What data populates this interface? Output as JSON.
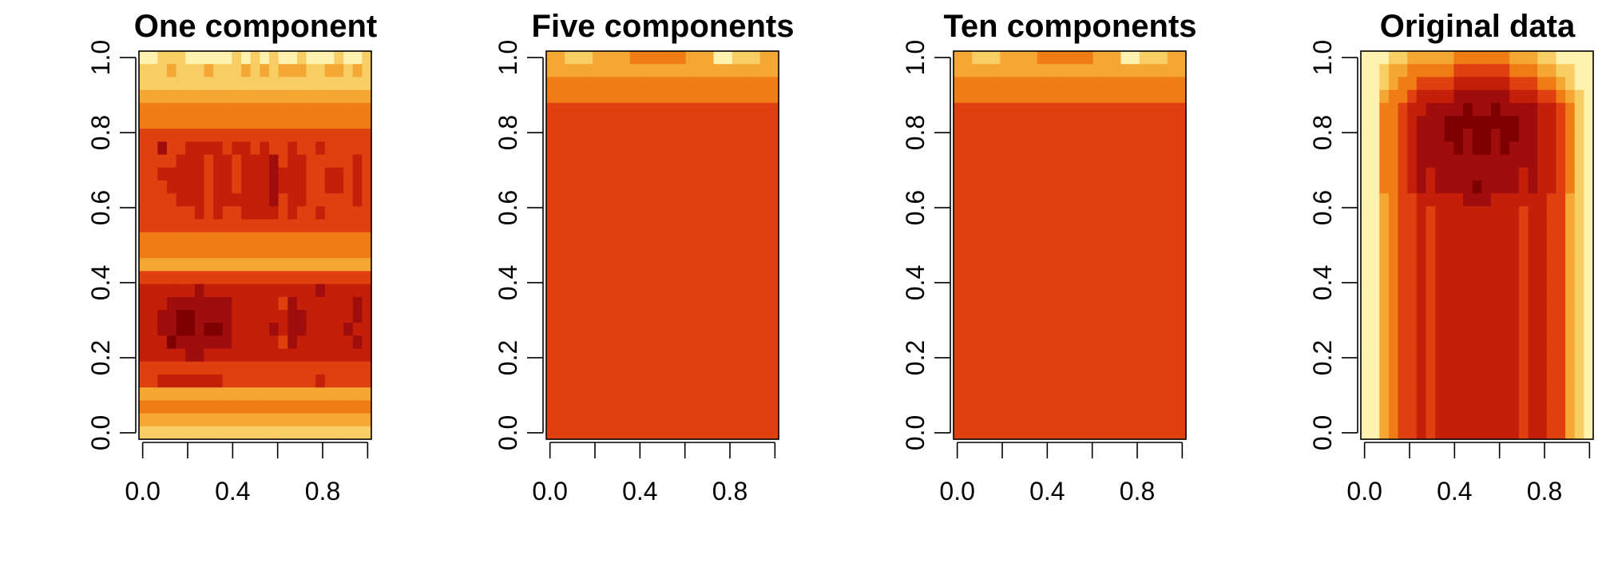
{
  "chart_data": {
    "type": "heatmap",
    "colormap": [
      "#7f0000",
      "#a00d0d",
      "#c51f0a",
      "#e0400f",
      "#ef7d14",
      "#f5a733",
      "#f8cd63",
      "#fff2b0"
    ],
    "grid": false,
    "panels": [
      {
        "title": "One component",
        "xlim": [
          0,
          1
        ],
        "ylim": [
          0,
          1
        ],
        "x_ticks": [
          "0.0",
          "0.4",
          "0.8"
        ],
        "y_ticks": [
          "0.0",
          "0.2",
          "0.4",
          "0.6",
          "0.8",
          "1.0"
        ],
        "cols": 25,
        "rows": 30,
        "cells": [
          "7766677777676767767776776",
          "6665666566656565556655656",
          "6666666666666666666666666",
          "5555555555555555555555555",
          "4444444444444444444444444",
          "4444444444444444444444444",
          "3333333333333333333333333",
          "3313322223223233233233333",
          "3333222322322213223333323",
          "3322222322322212223322323",
          "3332222322322212223322323",
          "3333222322222213223333323",
          "3333332323322223233233333",
          "3333333333333333333333333",
          "4444444444444444444444444",
          "4444444444444444444444444",
          "5555555555555555555555555",
          "3333333333333333333333333",
          "2222221222222222222122222",
          "2221111111222223122222212",
          "2211001111222222112222212",
          "2211001001222212112222122",
          "2220111111222223122222212",
          "2222211222222222222222222",
          "3333333333333333333333333",
          "3322222223333333333233333",
          "5555555555555555555555555",
          "4444444444444444444444444",
          "5555555555555555555555555",
          "6666666666666666666666666"
        ]
      },
      {
        "title": "Five components",
        "xlim": [
          0,
          1
        ],
        "ylim": [
          0,
          1
        ],
        "x_ticks": [
          "0.0",
          "0.4",
          "0.8"
        ],
        "y_ticks": [
          "0.0",
          "0.2",
          "0.4",
          "0.6",
          "0.8",
          "1.0"
        ],
        "cols": 25,
        "rows": 30,
        "cells": [
          "5566655554444445557766655",
          "5555555555555555555555555",
          "4444444444444444444444444",
          "4444444444444444444444444",
          "3333333333333333333333333",
          "3333333333333333333333333",
          "3333333333333333333333333",
          "3333333333333333333333333",
          "3333333333333333333333333",
          "3333333333333333333333333",
          "3333333333333333333333333",
          "3333333333333333333333333",
          "3333333333333333333333333",
          "3333333333333333333333333",
          "3333333333333333333333333",
          "3333333333333333333333333",
          "3333333333333333333333333",
          "3333333333333333333333333",
          "3333333333333333333333333",
          "3333333333333333333333333",
          "3333333333333333333333333",
          "3333333333333333333333333",
          "3333333333333333333333333",
          "3333333333333333333333333",
          "3333333333333333333333333",
          "3333333333333333333333333",
          "3333333333333333333333333",
          "3333333333333333333333333",
          "3333333333333333333333333",
          "3333333333333333333333333"
        ]
      },
      {
        "title": "Ten components",
        "xlim": [
          0,
          1
        ],
        "ylim": [
          0,
          1
        ],
        "x_ticks": [
          "0.0",
          "0.4",
          "0.8"
        ],
        "y_ticks": [
          "0.0",
          "0.2",
          "0.4",
          "0.6",
          "0.8",
          "1.0"
        ],
        "cols": 25,
        "rows": 30,
        "cells": [
          "5566655554444445557766655",
          "5555555555555555555555555",
          "4444444444444444444444444",
          "4444444444444444444444444",
          "3333333333333333333333333",
          "3333333333333333333333333",
          "3333333333333333333333333",
          "3333333333333333333333333",
          "3333333333333333333333333",
          "3333333333333333333333333",
          "3333333333333333333333333",
          "3333333333333333333333333",
          "3333333333333333333333333",
          "3333333333333333333333333",
          "3333333333333333333333333",
          "3333333333333333333333333",
          "3333333333333333333333333",
          "3333333333333333333333333",
          "3333333333333333333333333",
          "3333333333333333333333333",
          "3333333333333333333333333",
          "3333333333333333333333333",
          "3333333333333333333333333",
          "3333333333333333333333333",
          "3333333333333333333333333",
          "3333333333333333333333333",
          "3333333333333333333333333",
          "3333333333333333333333333",
          "3333333333333333333333333",
          "3333333333333333333333333"
        ]
      },
      {
        "title": "Original data",
        "xlim": [
          0,
          1
        ],
        "ylim": [
          0,
          1
        ],
        "x_ticks": [
          "0.0",
          "0.4",
          "0.8"
        ],
        "y_ticks": [
          "0.0",
          "0.2",
          "0.4",
          "0.6",
          "0.8",
          "1.0"
        ],
        "cols": 25,
        "rows": 30,
        "cells": [
          "7776655555444444555667777",
          "7765544444333333444556677",
          "7765443333222222333445677",
          "7754432222111111222334567",
          "7744322111101101111223467",
          "7744321110000000011223467",
          "7744321110010010011223467",
          "7744321111010010111223467",
          "7744321111111111111223467",
          "7744321211111111121223467",
          "7744321211110111121223467",
          "7754332222211122222233567",
          "7754332322222222232233567",
          "7754332322222222232233567",
          "7754332322222222232233567",
          "7754332322222222232233567",
          "7754332322222222232233567",
          "7754332322222222232233567",
          "7754332322222222232233567",
          "7754332322222222232233567",
          "7754332322222222232233567",
          "7754332322222222232233567",
          "7754332322222222232233567",
          "7754332322222222232233567",
          "7754332322222222232233567",
          "7754332322222222232233567",
          "7754332322222222232233567",
          "7754332322222222232233567",
          "7754332322222222232233567",
          "7754332322222222232233567"
        ]
      }
    ]
  }
}
